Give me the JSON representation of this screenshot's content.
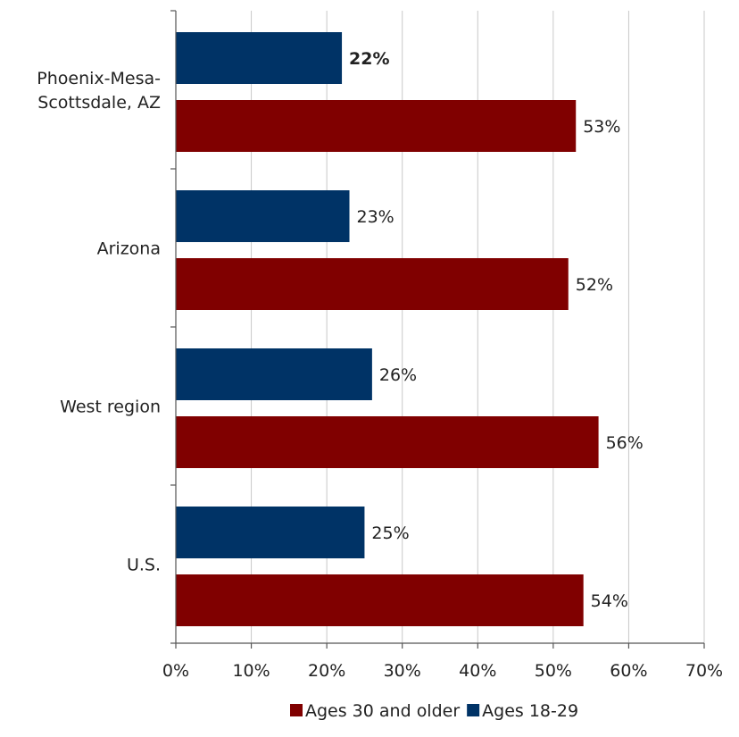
{
  "chart_data": {
    "type": "bar",
    "orientation": "horizontal",
    "title": "",
    "xlabel": "",
    "ylabel": "",
    "categories": [
      "Phoenix-Mesa-Scottsdale, AZ",
      "Arizona",
      "West region",
      "U.S."
    ],
    "category_lines": [
      [
        "Phoenix-Mesa-",
        "Scottsdale, AZ"
      ],
      [
        "Arizona"
      ],
      [
        "West region"
      ],
      [
        "U.S."
      ]
    ],
    "series": [
      {
        "name": "Ages 18-29",
        "color": "#003366",
        "values": [
          22,
          23,
          26,
          25
        ],
        "labels": [
          "22%",
          "23%",
          "26%",
          "25%"
        ]
      },
      {
        "name": "Ages 30 and older",
        "color": "#800000",
        "values": [
          53,
          52,
          56,
          54
        ],
        "labels": [
          "53%",
          "52%",
          "56%",
          "54%"
        ]
      }
    ],
    "bold_labels": [
      [
        true,
        false,
        false,
        false
      ],
      [
        false,
        false,
        false,
        false
      ]
    ],
    "xlim": [
      0,
      70
    ],
    "xticks": [
      0,
      10,
      20,
      30,
      40,
      50,
      60,
      70
    ],
    "xtick_labels": [
      "0%",
      "10%",
      "20%",
      "30%",
      "40%",
      "50%",
      "60%",
      "70%"
    ],
    "grid": true,
    "legend_position": "bottom",
    "legend_order": [
      "Ages 30 and older",
      "Ages 18-29"
    ]
  }
}
